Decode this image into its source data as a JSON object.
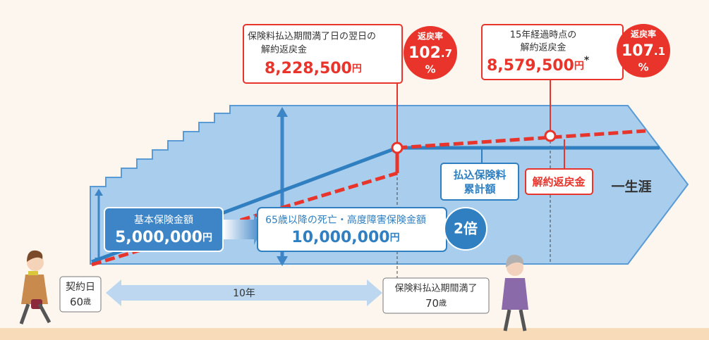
{
  "callout_payment_end": {
    "line1": "保険料払込期間満了日の翌日の",
    "line2": "解約返戻金",
    "amount": "8,228,500",
    "unit": "円",
    "rate_label": "返戻率",
    "rate_int": "102",
    "rate_dec": ".7",
    "rate_unit": "%"
  },
  "callout_15_years": {
    "line1": "15年経過時点の",
    "line2": "解約返戻金",
    "amount": "8,579,500",
    "unit": "円",
    "note_mark": "*",
    "rate_label": "返戻率",
    "rate_int": "107",
    "rate_dec": ".1",
    "rate_unit": "%"
  },
  "labels": {
    "paid_premium_line1": "払込保険料",
    "paid_premium_line2": "累計額",
    "surrender_value": "解約返戻金",
    "lifetime": "一生涯"
  },
  "base_amount": {
    "label": "基本保険金額",
    "amount": "5,000,000",
    "unit": "円"
  },
  "after_65_amount": {
    "label": "65歳以降の死亡・高度障害保険金額",
    "amount": "10,000,000",
    "unit": "円",
    "multiplier": "2倍"
  },
  "timeline": {
    "start_label": "契約日",
    "start_age": "60",
    "start_age_unit": "歳",
    "period": "10年",
    "end_label": "保険料払込期間満了",
    "end_age": "70",
    "end_age_unit": "歳"
  }
}
